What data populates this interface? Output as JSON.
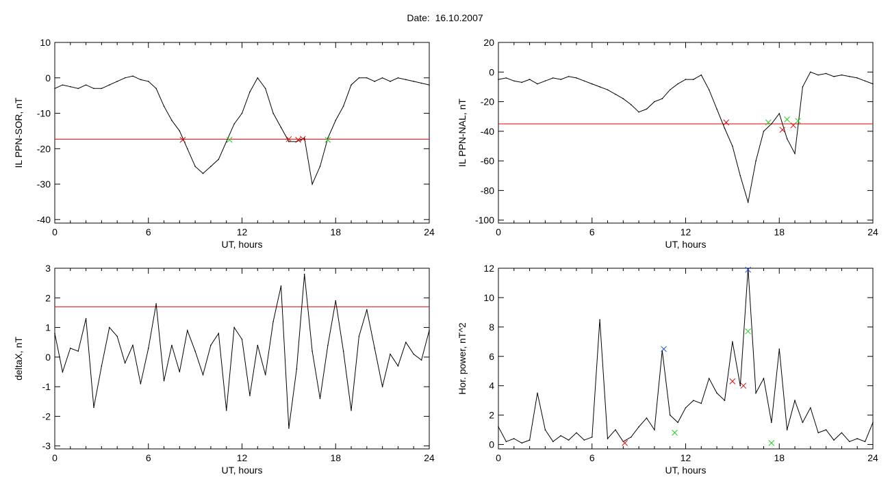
{
  "page": {
    "date_label": "Date:",
    "date_value": "16.10.2007"
  },
  "colors": {
    "axis": "#000000",
    "trace": "#000000",
    "threshold": "#e00000",
    "highlight": "#1f5fd1",
    "marker_red": "#d01010",
    "marker_green": "#22cc22",
    "marker_blue": "#2050c8"
  },
  "chart_data": [
    {
      "id": "ppn-sor",
      "type": "line",
      "xlabel": "UT, hours",
      "ylabel": "IL PPN-SOR, nT",
      "xlim": [
        0,
        24
      ],
      "ylim": [
        -41,
        10
      ],
      "xticks": [
        0,
        6,
        12,
        18,
        24
      ],
      "yticks": [
        10,
        0,
        -10,
        -20,
        -30,
        -40
      ],
      "threshold": -17.3,
      "series": [
        {
          "x": [
            0,
            0.5,
            1,
            1.5,
            2,
            2.5,
            3,
            3.5,
            4,
            4.5,
            5,
            5.5,
            6,
            6.5,
            7,
            7.5,
            8,
            8.5,
            9,
            9.5,
            10,
            10.5,
            11,
            11.5,
            12,
            12.5,
            13,
            13.5,
            14,
            14.5,
            15,
            15.5,
            16,
            16.5,
            17,
            17.5,
            18,
            18.5,
            19,
            19.5,
            20,
            20.5,
            21,
            21.5,
            22,
            22.5,
            23,
            23.5,
            24
          ],
          "y": [
            -3,
            -2,
            -2.5,
            -3,
            -2,
            -3,
            -3,
            -2,
            -1,
            0,
            0.5,
            -0.5,
            -1,
            -3,
            -8,
            -12,
            -15,
            -20,
            -25,
            -27,
            -25,
            -23,
            -18,
            -13,
            -10,
            -4,
            0,
            -3,
            -10,
            -14,
            -18,
            -18,
            -17,
            -30,
            -25,
            -17,
            -12,
            -8,
            -2,
            0,
            0,
            -1,
            0,
            -1,
            0,
            -0.5,
            -1,
            -1.5,
            -2
          ]
        }
      ],
      "markers": [
        {
          "x": 8.2,
          "y": -17.5,
          "color": "red"
        },
        {
          "x": 11.2,
          "y": -17.5,
          "color": "green"
        },
        {
          "x": 15.0,
          "y": -17.3,
          "color": "red"
        },
        {
          "x": 15.6,
          "y": -17.5,
          "color": "red"
        },
        {
          "x": 15.9,
          "y": -17.2,
          "color": "red"
        },
        {
          "x": 17.5,
          "y": -17.5,
          "color": "green"
        }
      ]
    },
    {
      "id": "ppn-nal",
      "type": "line",
      "xlabel": "UT, hours",
      "ylabel": "IL PPN-NAL, nT",
      "xlim": [
        0,
        24
      ],
      "ylim": [
        -102,
        20
      ],
      "xticks": [
        0,
        6,
        12,
        18,
        24
      ],
      "yticks": [
        20,
        0,
        -20,
        -40,
        -60,
        -80,
        -100
      ],
      "threshold": -35,
      "series": [
        {
          "x": [
            0,
            0.5,
            1,
            1.5,
            2,
            2.5,
            3,
            3.5,
            4,
            4.5,
            5,
            5.5,
            6,
            6.5,
            7,
            7.5,
            8,
            8.5,
            9,
            9.5,
            10,
            10.5,
            11,
            11.5,
            12,
            12.5,
            13,
            13.5,
            14,
            14.5,
            15,
            15.5,
            16,
            16.5,
            17,
            17.5,
            18,
            18.5,
            19,
            19.5,
            20,
            20.5,
            21,
            21.5,
            22,
            22.5,
            23,
            23.5,
            24
          ],
          "y": [
            -5,
            -4,
            -6,
            -7,
            -5,
            -8,
            -6,
            -4,
            -5,
            -3,
            -4,
            -6,
            -8,
            -10,
            -12,
            -15,
            -18,
            -22,
            -27,
            -25,
            -20,
            -18,
            -12,
            -8,
            -5,
            -5,
            -2,
            -12,
            -25,
            -38,
            -50,
            -70,
            -88,
            -60,
            -40,
            -35,
            -28,
            -45,
            -55,
            -10,
            0,
            -2,
            -1,
            -3,
            -2,
            -3,
            -4,
            -6,
            -8
          ]
        }
      ],
      "markers": [
        {
          "x": 14.6,
          "y": -34,
          "color": "red"
        },
        {
          "x": 17.3,
          "y": -34,
          "color": "green"
        },
        {
          "x": 18.2,
          "y": -39,
          "color": "red"
        },
        {
          "x": 18.5,
          "y": -32,
          "color": "green"
        },
        {
          "x": 18.9,
          "y": -36,
          "color": "red"
        },
        {
          "x": 19.2,
          "y": -33,
          "color": "green"
        }
      ]
    },
    {
      "id": "deltax",
      "type": "line",
      "xlabel": "UT, hours",
      "ylabel": "deltaX, nT",
      "xlim": [
        0,
        24
      ],
      "ylim": [
        -3.1,
        3
      ],
      "xticks": [
        0,
        6,
        12,
        18,
        24
      ],
      "yticks": [
        3,
        2,
        1,
        0,
        -1,
        -2,
        -3
      ],
      "threshold": 1.7,
      "series": [
        {
          "x": [
            0,
            0.5,
            1,
            1.5,
            2,
            2.5,
            3,
            3.5,
            4,
            4.5,
            5,
            5.5,
            6,
            6.5,
            7,
            7.5,
            8,
            8.5,
            9,
            9.5,
            10,
            10.5,
            11,
            11.5,
            12,
            12.5,
            13,
            13.5,
            14,
            14.5,
            15,
            15.5,
            16,
            16.5,
            17,
            17.5,
            18,
            18.5,
            19,
            19.5,
            20,
            20.5,
            21,
            21.5,
            22,
            22.5,
            23,
            23.5,
            24
          ],
          "y": [
            0.8,
            -0.5,
            0.3,
            0.2,
            1.3,
            -1.7,
            -0.3,
            1.0,
            0.7,
            -0.2,
            0.4,
            -0.9,
            0.3,
            1.8,
            -0.8,
            0.4,
            -0.5,
            0.9,
            0.2,
            -0.6,
            0.4,
            0.8,
            -1.8,
            1.0,
            0.6,
            -1.3,
            0.4,
            -0.6,
            1.2,
            2.4,
            -2.4,
            -0.4,
            2.8,
            0.2,
            -1.4,
            0.4,
            1.9,
            0.2,
            -1.8,
            0.7,
            1.6,
            0.3,
            -1.0,
            0.1,
            -0.3,
            0.5,
            0.1,
            -0.1,
            0.9
          ]
        }
      ],
      "markers": []
    },
    {
      "id": "hor-power",
      "type": "line",
      "xlabel": "UT, hours",
      "ylabel": "Hor. power, nT^2",
      "xlim": [
        0,
        24
      ],
      "ylim": [
        -0.3,
        12
      ],
      "xticks": [
        0,
        6,
        12,
        18,
        24
      ],
      "yticks": [
        12,
        10,
        8,
        6,
        4,
        2,
        0
      ],
      "threshold": null,
      "series": [
        {
          "x": [
            0,
            0.5,
            1,
            1.5,
            2,
            2.5,
            3,
            3.5,
            4,
            4.5,
            5,
            5.5,
            6,
            6.5,
            7,
            7.5,
            8,
            8.5,
            9,
            9.5,
            10,
            10.5,
            11,
            11.5,
            12,
            12.5,
            13,
            13.5,
            14,
            14.5,
            15,
            15.5,
            16,
            16.5,
            17,
            17.5,
            18,
            18.5,
            19,
            19.5,
            20,
            20.5,
            21,
            21.5,
            22,
            22.5,
            23,
            23.5,
            24
          ],
          "y": [
            1.2,
            0.2,
            0.4,
            0.1,
            0.3,
            3.5,
            1.0,
            0.2,
            0.6,
            0.3,
            0.8,
            0.3,
            0.5,
            8.5,
            0.4,
            1.0,
            0.2,
            0.5,
            1.2,
            1.8,
            1.0,
            6.4,
            2.0,
            1.5,
            2.5,
            3.0,
            2.8,
            4.5,
            3.5,
            3.0,
            7.0,
            4.0,
            12.0,
            3.5,
            4.5,
            1.5,
            6.5,
            1.0,
            3.0,
            1.5,
            2.5,
            0.8,
            1.0,
            0.3,
            0.8,
            0.2,
            0.4,
            0.2,
            1.5
          ]
        }
      ],
      "markers": [
        {
          "x": 8.1,
          "y": 0.1,
          "color": "red"
        },
        {
          "x": 10.6,
          "y": 6.5,
          "color": "blue"
        },
        {
          "x": 11.3,
          "y": 0.8,
          "color": "green"
        },
        {
          "x": 15.0,
          "y": 4.3,
          "color": "red"
        },
        {
          "x": 15.7,
          "y": 4.0,
          "color": "red"
        },
        {
          "x": 16.0,
          "y": 11.9,
          "color": "blue"
        },
        {
          "x": 16.0,
          "y": 7.7,
          "color": "green"
        },
        {
          "x": 17.5,
          "y": 0.1,
          "color": "green"
        }
      ]
    }
  ]
}
